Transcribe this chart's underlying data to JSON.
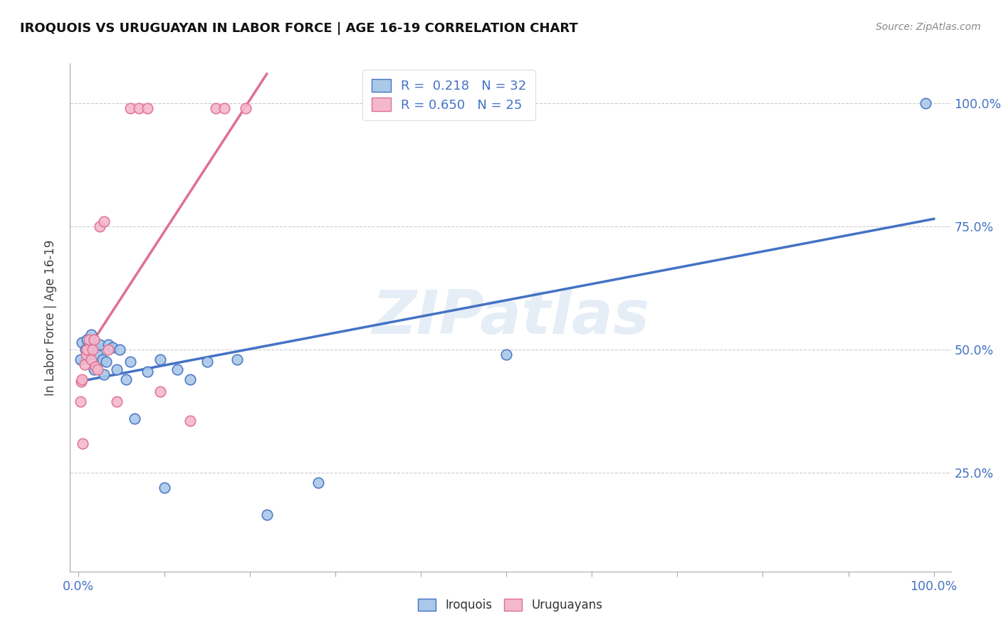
{
  "title": "IROQUOIS VS URUGUAYAN IN LABOR FORCE | AGE 16-19 CORRELATION CHART",
  "source": "Source: ZipAtlas.com",
  "ylabel": "In Labor Force | Age 16-19",
  "xlim": [
    -0.01,
    1.02
  ],
  "ylim": [
    0.05,
    1.08
  ],
  "ytick_positions": [
    0.25,
    0.5,
    0.75,
    1.0
  ],
  "ytick_labels": [
    "25.0%",
    "50.0%",
    "75.0%",
    "100.0%"
  ],
  "iroquois_color": "#aac8e8",
  "iroquois_edge_color": "#4472c4",
  "iroquois_line_color": "#4472c4",
  "uruguayan_color": "#f4b8cc",
  "uruguayan_edge_color": "#e07090",
  "uruguayan_line_color": "#e07090",
  "iroquois_R": 0.218,
  "iroquois_N": 32,
  "uruguayan_R": 0.65,
  "uruguayan_N": 25,
  "watermark": "ZIPatlas",
  "legend_text_color": "#4472c4",
  "tick_color": "#4472c4",
  "iroquois_x": [
    0.002,
    0.004,
    0.008,
    0.01,
    0.012,
    0.015,
    0.015,
    0.018,
    0.02,
    0.022,
    0.025,
    0.028,
    0.03,
    0.032,
    0.035,
    0.04,
    0.045,
    0.048,
    0.055,
    0.06,
    0.065,
    0.08,
    0.095,
    0.1,
    0.115,
    0.13,
    0.15,
    0.185,
    0.22,
    0.28,
    0.5,
    0.99
  ],
  "iroquois_y": [
    0.48,
    0.515,
    0.5,
    0.52,
    0.49,
    0.505,
    0.53,
    0.46,
    0.505,
    0.49,
    0.51,
    0.48,
    0.45,
    0.475,
    0.51,
    0.505,
    0.46,
    0.5,
    0.44,
    0.475,
    0.36,
    0.455,
    0.48,
    0.22,
    0.46,
    0.44,
    0.475,
    0.48,
    0.165,
    0.23,
    0.49,
    1.0
  ],
  "uruguayan_x": [
    0.002,
    0.003,
    0.004,
    0.005,
    0.007,
    0.009,
    0.01,
    0.012,
    0.015,
    0.016,
    0.018,
    0.02,
    0.022,
    0.025,
    0.03,
    0.035,
    0.045,
    0.06,
    0.07,
    0.08,
    0.095,
    0.13,
    0.16,
    0.17,
    0.195
  ],
  "uruguayan_y": [
    0.395,
    0.435,
    0.44,
    0.31,
    0.47,
    0.49,
    0.5,
    0.52,
    0.48,
    0.5,
    0.52,
    0.465,
    0.46,
    0.75,
    0.76,
    0.5,
    0.395,
    0.99,
    0.99,
    0.99,
    0.415,
    0.355,
    0.99,
    0.99,
    0.99
  ],
  "iroquois_line_x0": 0.0,
  "iroquois_line_x1": 1.0,
  "uruguayan_line_x0": 0.0,
  "uruguayan_line_x1": 0.21
}
